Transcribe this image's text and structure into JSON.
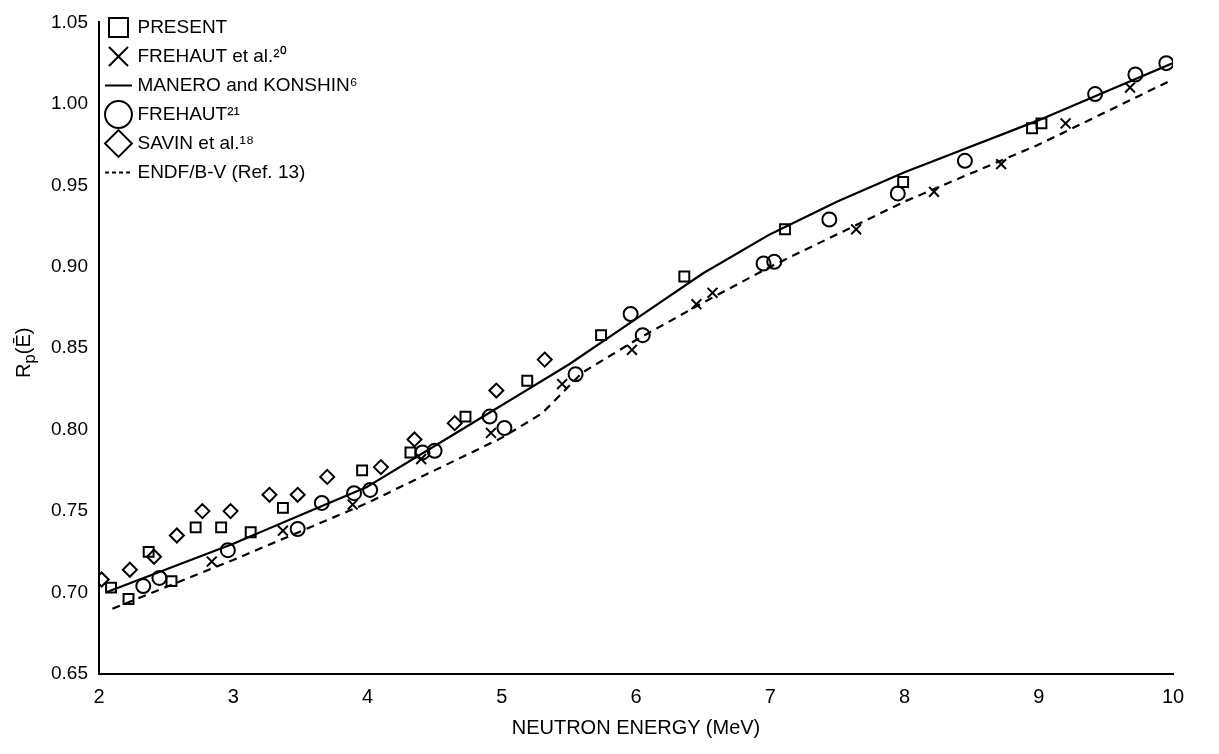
{
  "chart_data": {
    "type": "scatter",
    "xlabel": "NEUTRON ENERGY (MeV)",
    "ylabel": "R$_{p}$(Ē)",
    "xlim": [
      2,
      10
    ],
    "xticks": [
      2,
      3,
      4,
      5,
      6,
      7,
      8,
      9,
      10
    ],
    "ylim": [
      0.65,
      1.05
    ],
    "yticks": [
      {
        "value": 0.65,
        "label": "0.65"
      },
      {
        "value": 0.7,
        "label": "0.70"
      },
      {
        "value": 0.75,
        "label": "0.75"
      },
      {
        "value": 0.8,
        "label": "0.80"
      },
      {
        "value": 0.85,
        "label": "0.85"
      },
      {
        "value": 0.9,
        "label": "0.90"
      },
      {
        "value": 0.95,
        "label": "0.95"
      },
      {
        "value": 1.0,
        "label": "1.00"
      },
      {
        "value": 1.05,
        "label": "1.05"
      }
    ],
    "grid": false,
    "legend": "top left",
    "series": [
      {
        "name": "PRESENT",
        "type": "scatter",
        "marker": "square",
        "color": "#000000",
        "x": [
          2.09,
          2.22,
          2.37,
          2.54,
          2.72,
          2.91,
          3.13,
          3.37,
          3.96,
          4.32,
          4.73,
          5.19,
          5.74,
          6.36,
          7.11,
          7.99,
          8.95,
          9.02
        ],
        "values": [
          0.703,
          0.696,
          0.725,
          0.707,
          0.74,
          0.74,
          0.737,
          0.752,
          0.775,
          0.786,
          0.808,
          0.83,
          0.858,
          0.894,
          0.923,
          0.952,
          0.985,
          0.988
        ]
      },
      {
        "name": "FREHAUT et al.²⁰",
        "type": "scatter",
        "marker": "cross",
        "color": "#000000",
        "x": [
          2.84,
          3.37,
          3.89,
          4.4,
          4.92,
          5.45,
          5.97,
          6.45,
          6.57,
          7.64,
          8.22,
          8.72,
          9.2,
          9.68
        ],
        "values": [
          0.719,
          0.738,
          0.754,
          0.782,
          0.798,
          0.828,
          0.849,
          0.877,
          0.884,
          0.923,
          0.946,
          0.963,
          0.988,
          1.01
        ]
      },
      {
        "name": "MANERO and KONSHIN⁶",
        "type": "line",
        "marker": "none",
        "line_style": "solid",
        "color": "#000000",
        "x": [
          2.05,
          3,
          4,
          4.5,
          5,
          5.5,
          6,
          6.5,
          7,
          7.5,
          8,
          9,
          10
        ],
        "values": [
          0.7,
          0.73,
          0.765,
          0.79,
          0.815,
          0.84,
          0.868,
          0.896,
          0.92,
          0.94,
          0.958,
          0.99,
          1.025
        ]
      },
      {
        "name": "FREHAUT²¹",
        "type": "scatter",
        "marker": "circle",
        "color": "#000000",
        "x": [
          2.33,
          2.45,
          2.96,
          3.48,
          3.66,
          3.9,
          4.02,
          4.41,
          4.5,
          4.91,
          5.02,
          5.55,
          5.96,
          6.05,
          6.95,
          7.03,
          7.44,
          7.95,
          8.45,
          9.42,
          9.72,
          9.95
        ],
        "values": [
          0.704,
          0.709,
          0.726,
          0.739,
          0.755,
          0.761,
          0.763,
          0.786,
          0.787,
          0.808,
          0.801,
          0.834,
          0.871,
          0.858,
          0.902,
          0.903,
          0.929,
          0.945,
          0.965,
          1.006,
          1.018,
          1.025
        ]
      },
      {
        "name": "SAVIN et al.¹⁸",
        "type": "scatter",
        "marker": "diamond",
        "color": "#000000",
        "x": [
          2.02,
          2.23,
          2.41,
          2.58,
          2.77,
          2.98,
          3.27,
          3.48,
          3.7,
          4.1,
          4.35,
          4.65,
          4.96,
          5.32
        ],
        "values": [
          0.708,
          0.714,
          0.722,
          0.735,
          0.75,
          0.75,
          0.76,
          0.76,
          0.771,
          0.777,
          0.794,
          0.804,
          0.824,
          0.843
        ]
      },
      {
        "name": "ENDF/B-V (Ref. 13)",
        "type": "line",
        "marker": "none",
        "line_style": "dashed",
        "color": "#000000",
        "x": [
          2.1,
          3,
          4,
          4.5,
          5,
          5.3,
          5.6,
          6,
          6.5,
          7,
          7.5,
          8,
          9,
          10
        ],
        "values": [
          0.69,
          0.72,
          0.755,
          0.775,
          0.795,
          0.81,
          0.835,
          0.855,
          0.878,
          0.9,
          0.92,
          0.94,
          0.975,
          1.015
        ]
      }
    ]
  }
}
